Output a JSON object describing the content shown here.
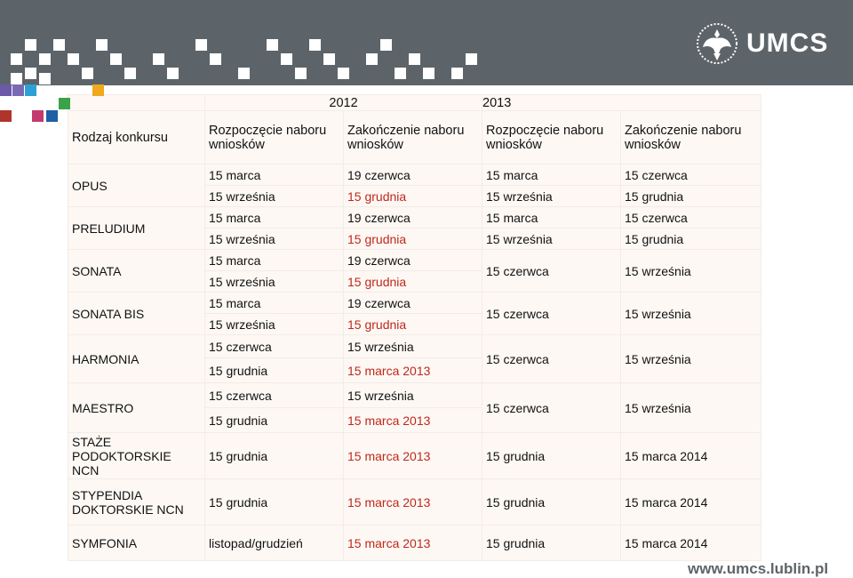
{
  "brand": {
    "name": "UMCS",
    "website": "www.umcs.lublin.pl"
  },
  "colors": {
    "header_bg": "#5c6469",
    "table_bg": "#fdf8f4",
    "red_text": "#c0281b"
  },
  "years": [
    "2012",
    "2013"
  ],
  "header": {
    "type_label": "Rodzaj konkursu",
    "start_label": "Rozpoczęcie naboru wniosków",
    "end_label": "Zakończenie naboru wniosków"
  },
  "rows": {
    "opus": {
      "name": "OPUS",
      "a": [
        "15 marca",
        "19 czerwca",
        "15 marca",
        "15 czerwca"
      ],
      "b": [
        "15 września",
        "15 grudnia",
        "15 września",
        "15 grudnia"
      ]
    },
    "preludium": {
      "name": "PRELUDIUM",
      "a": [
        "15 marca",
        "19 czerwca",
        "15 marca",
        "15 czerwca"
      ],
      "b": [
        "15 września",
        "15 grudnia",
        "15 września",
        "15 grudnia"
      ]
    },
    "sonata": {
      "name": "SONATA",
      "a": [
        "15 marca",
        "19 czerwca"
      ],
      "b": [
        "15 września",
        "15 grudnia"
      ],
      "y2013": [
        "15 czerwca",
        "15 września"
      ]
    },
    "sonata_bis": {
      "name": "SONATA BIS",
      "a": [
        "15 marca",
        "19 czerwca"
      ],
      "b": [
        "15 września",
        "15 grudnia"
      ],
      "y2013": [
        "15 czerwca",
        "15 września"
      ]
    },
    "harmonia": {
      "name": "HARMONIA",
      "a": [
        "15 czerwca",
        "15 września"
      ],
      "b": [
        "15 grudnia",
        "15 marca 2013"
      ],
      "y2013": [
        "15 czerwca",
        "15 września"
      ]
    },
    "maestro": {
      "name": "MAESTRO",
      "a": [
        "15 czerwca",
        "15 września"
      ],
      "b": [
        "15 grudnia",
        "15 marca 2013"
      ],
      "y2013": [
        "15 czerwca",
        "15 września"
      ]
    },
    "staze": {
      "name": "STAŻE PODOKTORSKIE NCN",
      "a": [
        "15 grudnia",
        "15 marca 2013",
        "15 grudnia",
        "15 marca 2014"
      ]
    },
    "stypendia": {
      "name": "STYPENDIA DOKTORSKIE NCN",
      "a": [
        "15 grudnia",
        "15 marca 2013",
        "15 grudnia",
        "15 marca 2014"
      ]
    },
    "symfonia": {
      "name": "SYMFONIA",
      "a": [
        "listopad/grudzień",
        "15 marca 2013",
        "15 grudnia",
        "15 marca 2014"
      ]
    }
  }
}
